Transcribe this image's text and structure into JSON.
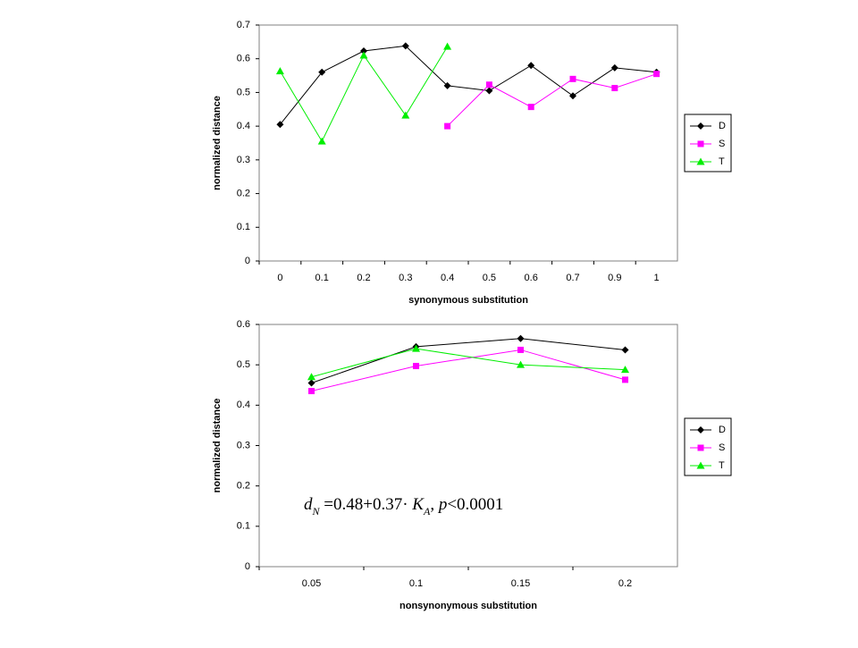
{
  "chart_data": [
    {
      "type": "line",
      "categories": [
        "0",
        "0.1",
        "0.2",
        "0.3",
        "0.4",
        "0.5",
        "0.6",
        "0.7",
        "0.9",
        "1"
      ],
      "series": [
        {
          "name": "D",
          "color": "#000000",
          "marker": "diamond",
          "values": [
            0.405,
            0.56,
            0.623,
            0.638,
            0.52,
            0.505,
            0.58,
            0.49,
            0.573,
            0.56
          ]
        },
        {
          "name": "S",
          "color": "#ff00ff",
          "marker": "square",
          "values": [
            null,
            null,
            null,
            null,
            0.4,
            0.523,
            0.457,
            0.54,
            0.513,
            0.555
          ]
        },
        {
          "name": "T",
          "color": "#00ee00",
          "marker": "triangle",
          "values": [
            0.563,
            0.355,
            0.61,
            0.432,
            0.636,
            null,
            null,
            null,
            null,
            null
          ]
        }
      ],
      "ylim": [
        0,
        0.7
      ],
      "yticks": [
        0,
        0.1,
        0.2,
        0.3,
        0.4,
        0.5,
        0.6,
        0.7
      ],
      "xlabel": "synonymous substitution",
      "ylabel": "normalized distance",
      "legend": "right"
    },
    {
      "type": "line",
      "categories": [
        "0.05",
        "0.1",
        "0.15",
        "0.2"
      ],
      "series": [
        {
          "name": "D",
          "color": "#000000",
          "marker": "diamond",
          "values": [
            0.455,
            0.545,
            0.565,
            0.537
          ]
        },
        {
          "name": "S",
          "color": "#ff00ff",
          "marker": "square",
          "values": [
            0.435,
            0.497,
            0.537,
            0.463
          ]
        },
        {
          "name": "T",
          "color": "#00ee00",
          "marker": "triangle",
          "values": [
            0.47,
            0.54,
            0.5,
            0.488
          ]
        }
      ],
      "ylim": [
        0,
        0.6
      ],
      "yticks": [
        0,
        0.1,
        0.2,
        0.3,
        0.4,
        0.5,
        0.6
      ],
      "xlabel": "nonsynonymous substitution",
      "ylabel": "normalized distance",
      "legend": "right",
      "annotation": [
        "d",
        "N",
        " =0.48+0.37· ",
        "K",
        "A",
        ", ",
        "p",
        "<0.0001"
      ]
    }
  ]
}
